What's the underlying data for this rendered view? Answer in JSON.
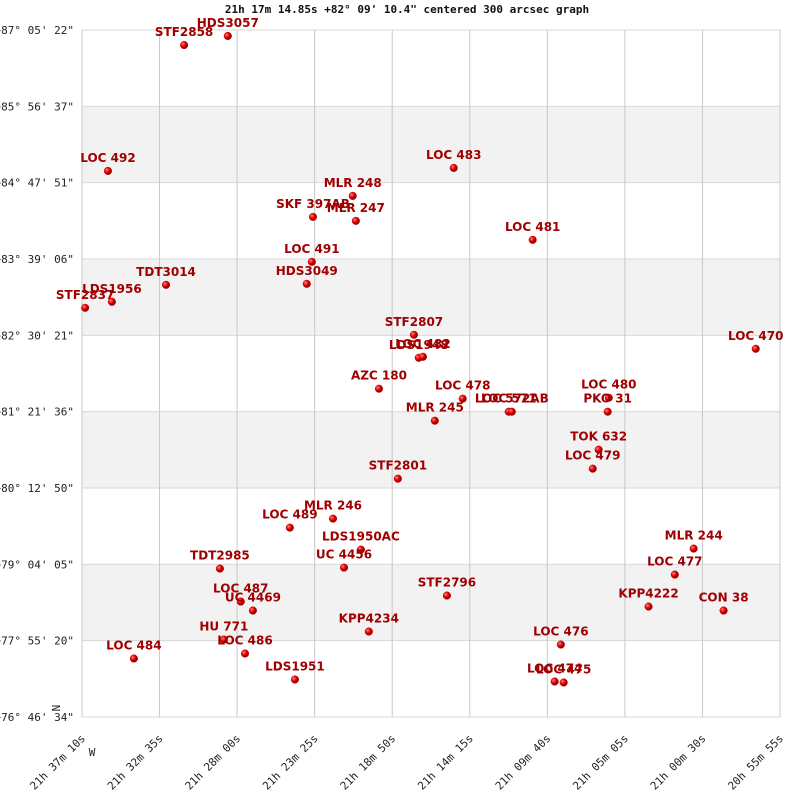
{
  "chart_data": {
    "type": "scatter",
    "title": "21h 17m 14.85s +82° 09' 10.4\" centered 300 arcsec graph",
    "north_label": "N",
    "west_label": "W",
    "color": "#cc0000",
    "label_color": "#a00000",
    "grid": true,
    "xlim": [
      77830,
      75355
    ],
    "ylim": [
      76.7761,
      87.0894
    ],
    "xticks": [
      {
        "value": 77830,
        "label": "21h 37m 10s"
      },
      {
        "value": 77555,
        "label": "21h 32m 35s"
      },
      {
        "value": 77280,
        "label": "21h 28m 00s"
      },
      {
        "value": 77005,
        "label": "21h 23m 25s"
      },
      {
        "value": 76730,
        "label": "21h 18m 50s"
      },
      {
        "value": 76455,
        "label": "21h 14m 15s"
      },
      {
        "value": 76180,
        "label": "21h 09m 40s"
      },
      {
        "value": 75905,
        "label": "21h 05m 05s"
      },
      {
        "value": 75630,
        "label": "21h 00m 30s"
      },
      {
        "value": 75355,
        "label": "20h 55m 55s"
      }
    ],
    "yticks": [
      {
        "value": 87.0894,
        "label": "+87° 05' 22\""
      },
      {
        "value": 85.9436,
        "label": "+85° 56' 37\""
      },
      {
        "value": 84.7975,
        "label": "+84° 47' 51\""
      },
      {
        "value": 83.6517,
        "label": "+83° 39' 06\""
      },
      {
        "value": 82.5058,
        "label": "+82° 30' 21\""
      },
      {
        "value": 81.36,
        "label": "+81° 21' 36\""
      },
      {
        "value": 80.2139,
        "label": "+80° 12' 50\""
      },
      {
        "value": 79.0681,
        "label": "+79° 04' 05\""
      },
      {
        "value": 77.9222,
        "label": "+77° 55' 20\""
      },
      {
        "value": 76.7761,
        "label": "+76° 46' 34\""
      }
    ],
    "points": [
      {
        "label": "STF2858",
        "x": 77468,
        "y": 86.864
      },
      {
        "label": "HDS3057",
        "x": 77313,
        "y": 87.0
      },
      {
        "label": "LOC 492",
        "x": 77738,
        "y": 84.974
      },
      {
        "label": "LOC 483",
        "x": 76512,
        "y": 85.019
      },
      {
        "label": "MLR 248",
        "x": 76870,
        "y": 84.599
      },
      {
        "label": "SKF 397AB",
        "x": 77011,
        "y": 84.284
      },
      {
        "label": "MLR 247",
        "x": 76859,
        "y": 84.224
      },
      {
        "label": "LOC 481",
        "x": 76232,
        "y": 83.939
      },
      {
        "label": "LOC 491",
        "x": 77015,
        "y": 83.609
      },
      {
        "label": "HDS3049",
        "x": 77033,
        "y": 83.279
      },
      {
        "label": "TDT3014",
        "x": 77532,
        "y": 83.264
      },
      {
        "label": "LDS1956",
        "x": 77724,
        "y": 83.009
      },
      {
        "label": "STF2837",
        "x": 77819,
        "y": 82.919
      },
      {
        "label": "LOC 470",
        "x": 75441,
        "y": 82.304
      },
      {
        "label": "STF2807",
        "x": 76653,
        "y": 82.514
      },
      {
        "label": "LDS1948",
        "x": 76636,
        "y": 82.169
      },
      {
        "label": "LOC 482",
        "x": 76621,
        "y": 82.184
      },
      {
        "label": "AZC 180",
        "x": 76777,
        "y": 81.704
      },
      {
        "label": "LOC 478",
        "x": 76480,
        "y": 81.554
      },
      {
        "label": "LOC 571",
        "x": 76317,
        "y": 81.359
      },
      {
        "label": "LOC 572AB",
        "x": 76306,
        "y": 81.359
      },
      {
        "label": "LOC 480",
        "x": 75962,
        "y": 81.569
      },
      {
        "label": "PKO  31",
        "x": 75966,
        "y": 81.359
      },
      {
        "label": "MLR 245",
        "x": 76579,
        "y": 81.224
      },
      {
        "label": "TOK 632",
        "x": 75998,
        "y": 80.789
      },
      {
        "label": "LOC 479",
        "x": 76019,
        "y": 80.504
      },
      {
        "label": "STF2801",
        "x": 76710,
        "y": 80.354
      },
      {
        "label": "MLR 246",
        "x": 76940,
        "y": 79.754
      },
      {
        "label": "LOC 489",
        "x": 77093,
        "y": 79.619
      },
      {
        "label": "LDS1950AC",
        "x": 76841,
        "y": 79.289
      },
      {
        "label": "UC 4456",
        "x": 76901,
        "y": 79.019
      },
      {
        "label": "MLR 244",
        "x": 75661,
        "y": 79.304
      },
      {
        "label": "LOC 477",
        "x": 75728,
        "y": 78.914
      },
      {
        "label": "TDT2985",
        "x": 77341,
        "y": 79.004
      },
      {
        "label": "STF2796",
        "x": 76536,
        "y": 78.599
      },
      {
        "label": "KPP4222",
        "x": 75821,
        "y": 78.434
      },
      {
        "label": "CON  38",
        "x": 75555,
        "y": 78.374
      },
      {
        "label": "LOC 487",
        "x": 77267,
        "y": 78.509
      },
      {
        "label": "UC 4469",
        "x": 77224,
        "y": 78.374
      },
      {
        "label": "KPP4234",
        "x": 76813,
        "y": 78.059
      },
      {
        "label": "HU  771",
        "x": 77327,
        "y": 77.939
      },
      {
        "label": "LOC 486",
        "x": 77252,
        "y": 77.729
      },
      {
        "label": "LOC 476",
        "x": 76132,
        "y": 77.864
      },
      {
        "label": "LOC 484",
        "x": 77646,
        "y": 77.654
      },
      {
        "label": "LDS1951",
        "x": 77075,
        "y": 77.339
      },
      {
        "label": "LOC 474",
        "x": 76154,
        "y": 77.309
      },
      {
        "label": "LOC 475",
        "x": 76122,
        "y": 77.294
      }
    ]
  }
}
